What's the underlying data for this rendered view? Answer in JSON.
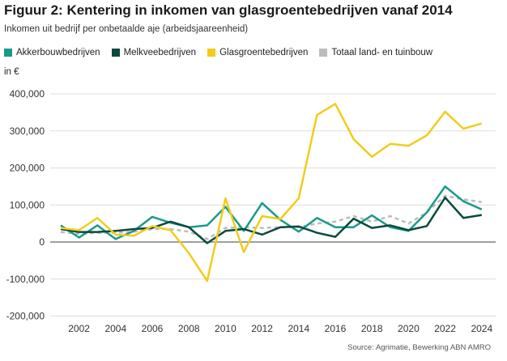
{
  "title": "Figuur 2: Kentering in inkomen van glasgroentebedrijven vanaf 2014",
  "subtitle": "Inkomen uit bedrijf per onbetaalde aje (arbeidsjaareenheid)",
  "unit": "in €",
  "source": "Source:  Agrimatie, Bewerking ABN AMRO",
  "chart_data": {
    "type": "line",
    "title": "Figuur 2: Kentering in inkomen van glasgroentebedrijven vanaf 2014",
    "subtitle": "Inkomen uit bedrijf per onbetaalde aje (arbeidsjaareenheid)",
    "ylabel": "in €",
    "ylim": [
      -200000,
      400000
    ],
    "yticks": [
      -200000,
      -100000,
      0,
      100000,
      200000,
      300000,
      400000
    ],
    "ytick_labels": [
      "-200,000",
      "-100,000",
      "0",
      "100,000",
      "200,000",
      "300,000",
      "400,000"
    ],
    "xticks": [
      "2002",
      "2004",
      "2006",
      "2008",
      "2010",
      "2012",
      "2014",
      "2016",
      "2018",
      "2020",
      "2022",
      "2024"
    ],
    "grid": true,
    "legend": "top",
    "x": [
      2001,
      2002,
      2003,
      2004,
      2005,
      2006,
      2007,
      2008,
      2009,
      2010,
      2011,
      2012,
      2013,
      2014,
      2015,
      2016,
      2017,
      2018,
      2019,
      2020,
      2021,
      2022,
      2023,
      2024
    ],
    "series": [
      {
        "name": "Akkerbouwbedrijven",
        "color": "#1a9a8a",
        "dashed": false,
        "values": [
          45000,
          12000,
          45000,
          8000,
          30000,
          68000,
          52000,
          40000,
          45000,
          95000,
          30000,
          105000,
          60000,
          28000,
          65000,
          40000,
          40000,
          72000,
          40000,
          30000,
          80000,
          150000,
          110000,
          88000
        ]
      },
      {
        "name": "Melkveebedrijven",
        "color": "#0b4a3e",
        "dashed": false,
        "values": [
          35000,
          27000,
          27000,
          30000,
          35000,
          38000,
          55000,
          40000,
          -3000,
          30000,
          35000,
          20000,
          40000,
          42000,
          25000,
          14000,
          63000,
          38000,
          45000,
          32000,
          43000,
          120000,
          65000,
          73000
        ]
      },
      {
        "name": "Glasgroentebedrijven",
        "color": "#f2cc1a",
        "dashed": false,
        "values": [
          38000,
          32000,
          65000,
          20000,
          17000,
          43000,
          32000,
          -30000,
          -105000,
          118000,
          -27000,
          70000,
          62000,
          118000,
          343000,
          373000,
          278000,
          230000,
          265000,
          260000,
          288000,
          352000,
          306000,
          320000
        ]
      },
      {
        "name": "Totaal land- en tuinbouw",
        "color": "#bcbcbc",
        "dashed": true,
        "values": [
          27000,
          22000,
          25000,
          25000,
          28000,
          35000,
          35000,
          28000,
          8000,
          38000,
          40000,
          38000,
          40000,
          40000,
          50000,
          55000,
          70000,
          55000,
          70000,
          50000,
          80000,
          125000,
          115000,
          108000
        ]
      }
    ]
  }
}
